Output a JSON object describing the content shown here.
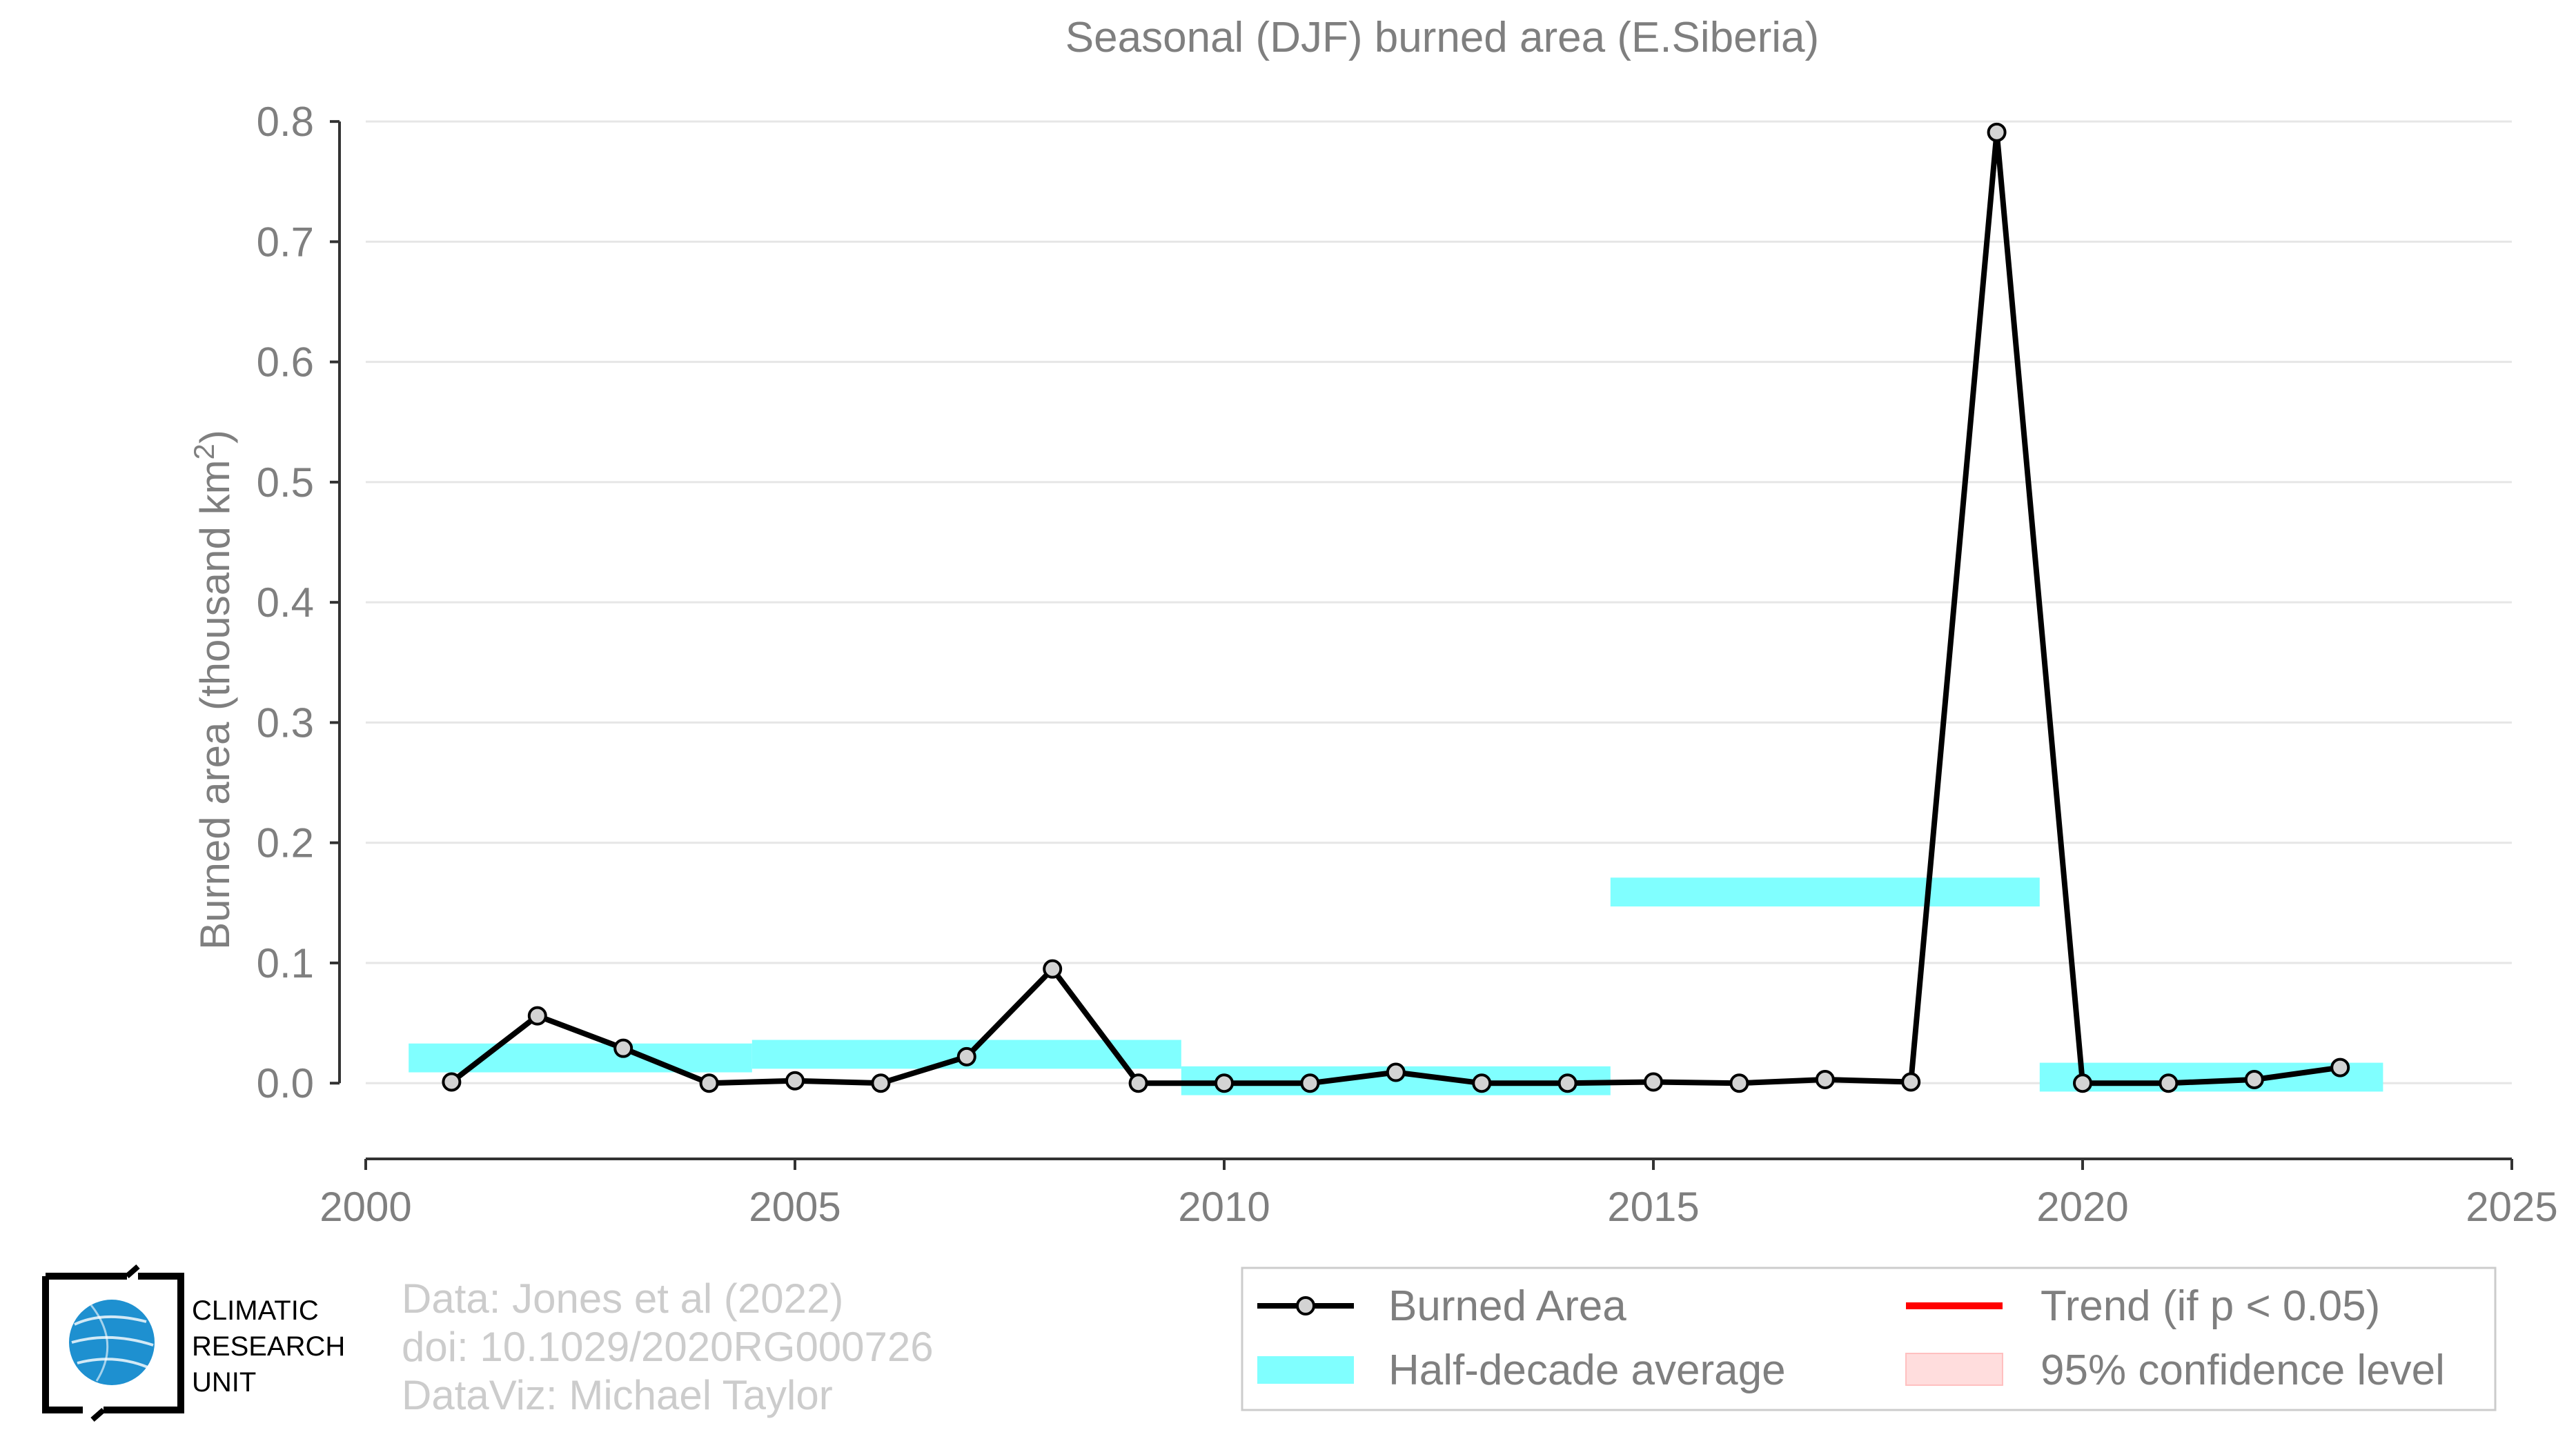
{
  "chart_data": {
    "type": "line",
    "title": "Seasonal (DJF) burned area (E.Siberia)",
    "ylabel": "Burned area (thousand km",
    "ylabel_sup": "2",
    "ylabel_close": ")",
    "xlim": [
      2000,
      2025
    ],
    "ylim": [
      -0.063,
      0.815
    ],
    "xticks": [
      2000,
      2005,
      2010,
      2015,
      2020,
      2025
    ],
    "xtick_labels": [
      "2000",
      "2005",
      "2010",
      "2015",
      "2020",
      "2025"
    ],
    "yticks": [
      0.0,
      0.1,
      0.2,
      0.3,
      0.4,
      0.5,
      0.6,
      0.7,
      0.8
    ],
    "ytick_labels": [
      "0.0",
      "0.1",
      "0.2",
      "0.3",
      "0.4",
      "0.5",
      "0.6",
      "0.7",
      "0.8"
    ],
    "grid": "horizontal",
    "legend_position": "bottom-right",
    "colors": {
      "line": "#000000",
      "marker_fill": "#d3d3d3",
      "half_decade": "#80ffff",
      "trend": "#ff0000",
      "confidence": "#ffdddd",
      "grid": "#e6e6e6",
      "text": "#7f7f7f"
    },
    "series": [
      {
        "name": "Burned Area",
        "x": [
          2001,
          2002,
          2003,
          2004,
          2005,
          2006,
          2007,
          2008,
          2009,
          2010,
          2011,
          2012,
          2013,
          2014,
          2015,
          2016,
          2017,
          2018,
          2019,
          2020,
          2021,
          2022,
          2023
        ],
        "y": [
          0.001,
          0.056,
          0.029,
          0.0,
          0.002,
          0.0,
          0.022,
          0.095,
          0.0,
          0.0,
          0.0,
          0.009,
          0.0,
          0.0,
          0.001,
          0.0,
          0.003,
          0.001,
          0.791,
          0.0,
          0.0,
          0.003,
          0.013
        ]
      }
    ],
    "half_decade_average": [
      {
        "x0": 2000.5,
        "x1": 2004.5,
        "y": 0.021
      },
      {
        "x0": 2004.5,
        "x1": 2009.5,
        "y": 0.024
      },
      {
        "x0": 2009.5,
        "x1": 2014.5,
        "y": 0.002
      },
      {
        "x0": 2014.5,
        "x1": 2019.5,
        "y": 0.159
      },
      {
        "x0": 2019.5,
        "x1": 2023.5,
        "y": 0.005
      }
    ],
    "half_decade_band_height": 0.024,
    "legend": [
      {
        "key": "burned",
        "label": "Burned Area"
      },
      {
        "key": "trend",
        "label": "Trend (if p < 0.05)"
      },
      {
        "key": "half",
        "label": "Half-decade average"
      },
      {
        "key": "conf",
        "label": "95% confidence level"
      }
    ]
  },
  "credits": {
    "line1": "Data: Jones et al (2022)",
    "line2": "doi: 10.1029/2020RG000726",
    "line3": "DataViz: Michael Taylor"
  },
  "logo": {
    "line1": "CLIMATIC",
    "line2": "RESEARCH",
    "line3": "UNIT",
    "icon": "globe-icon"
  }
}
